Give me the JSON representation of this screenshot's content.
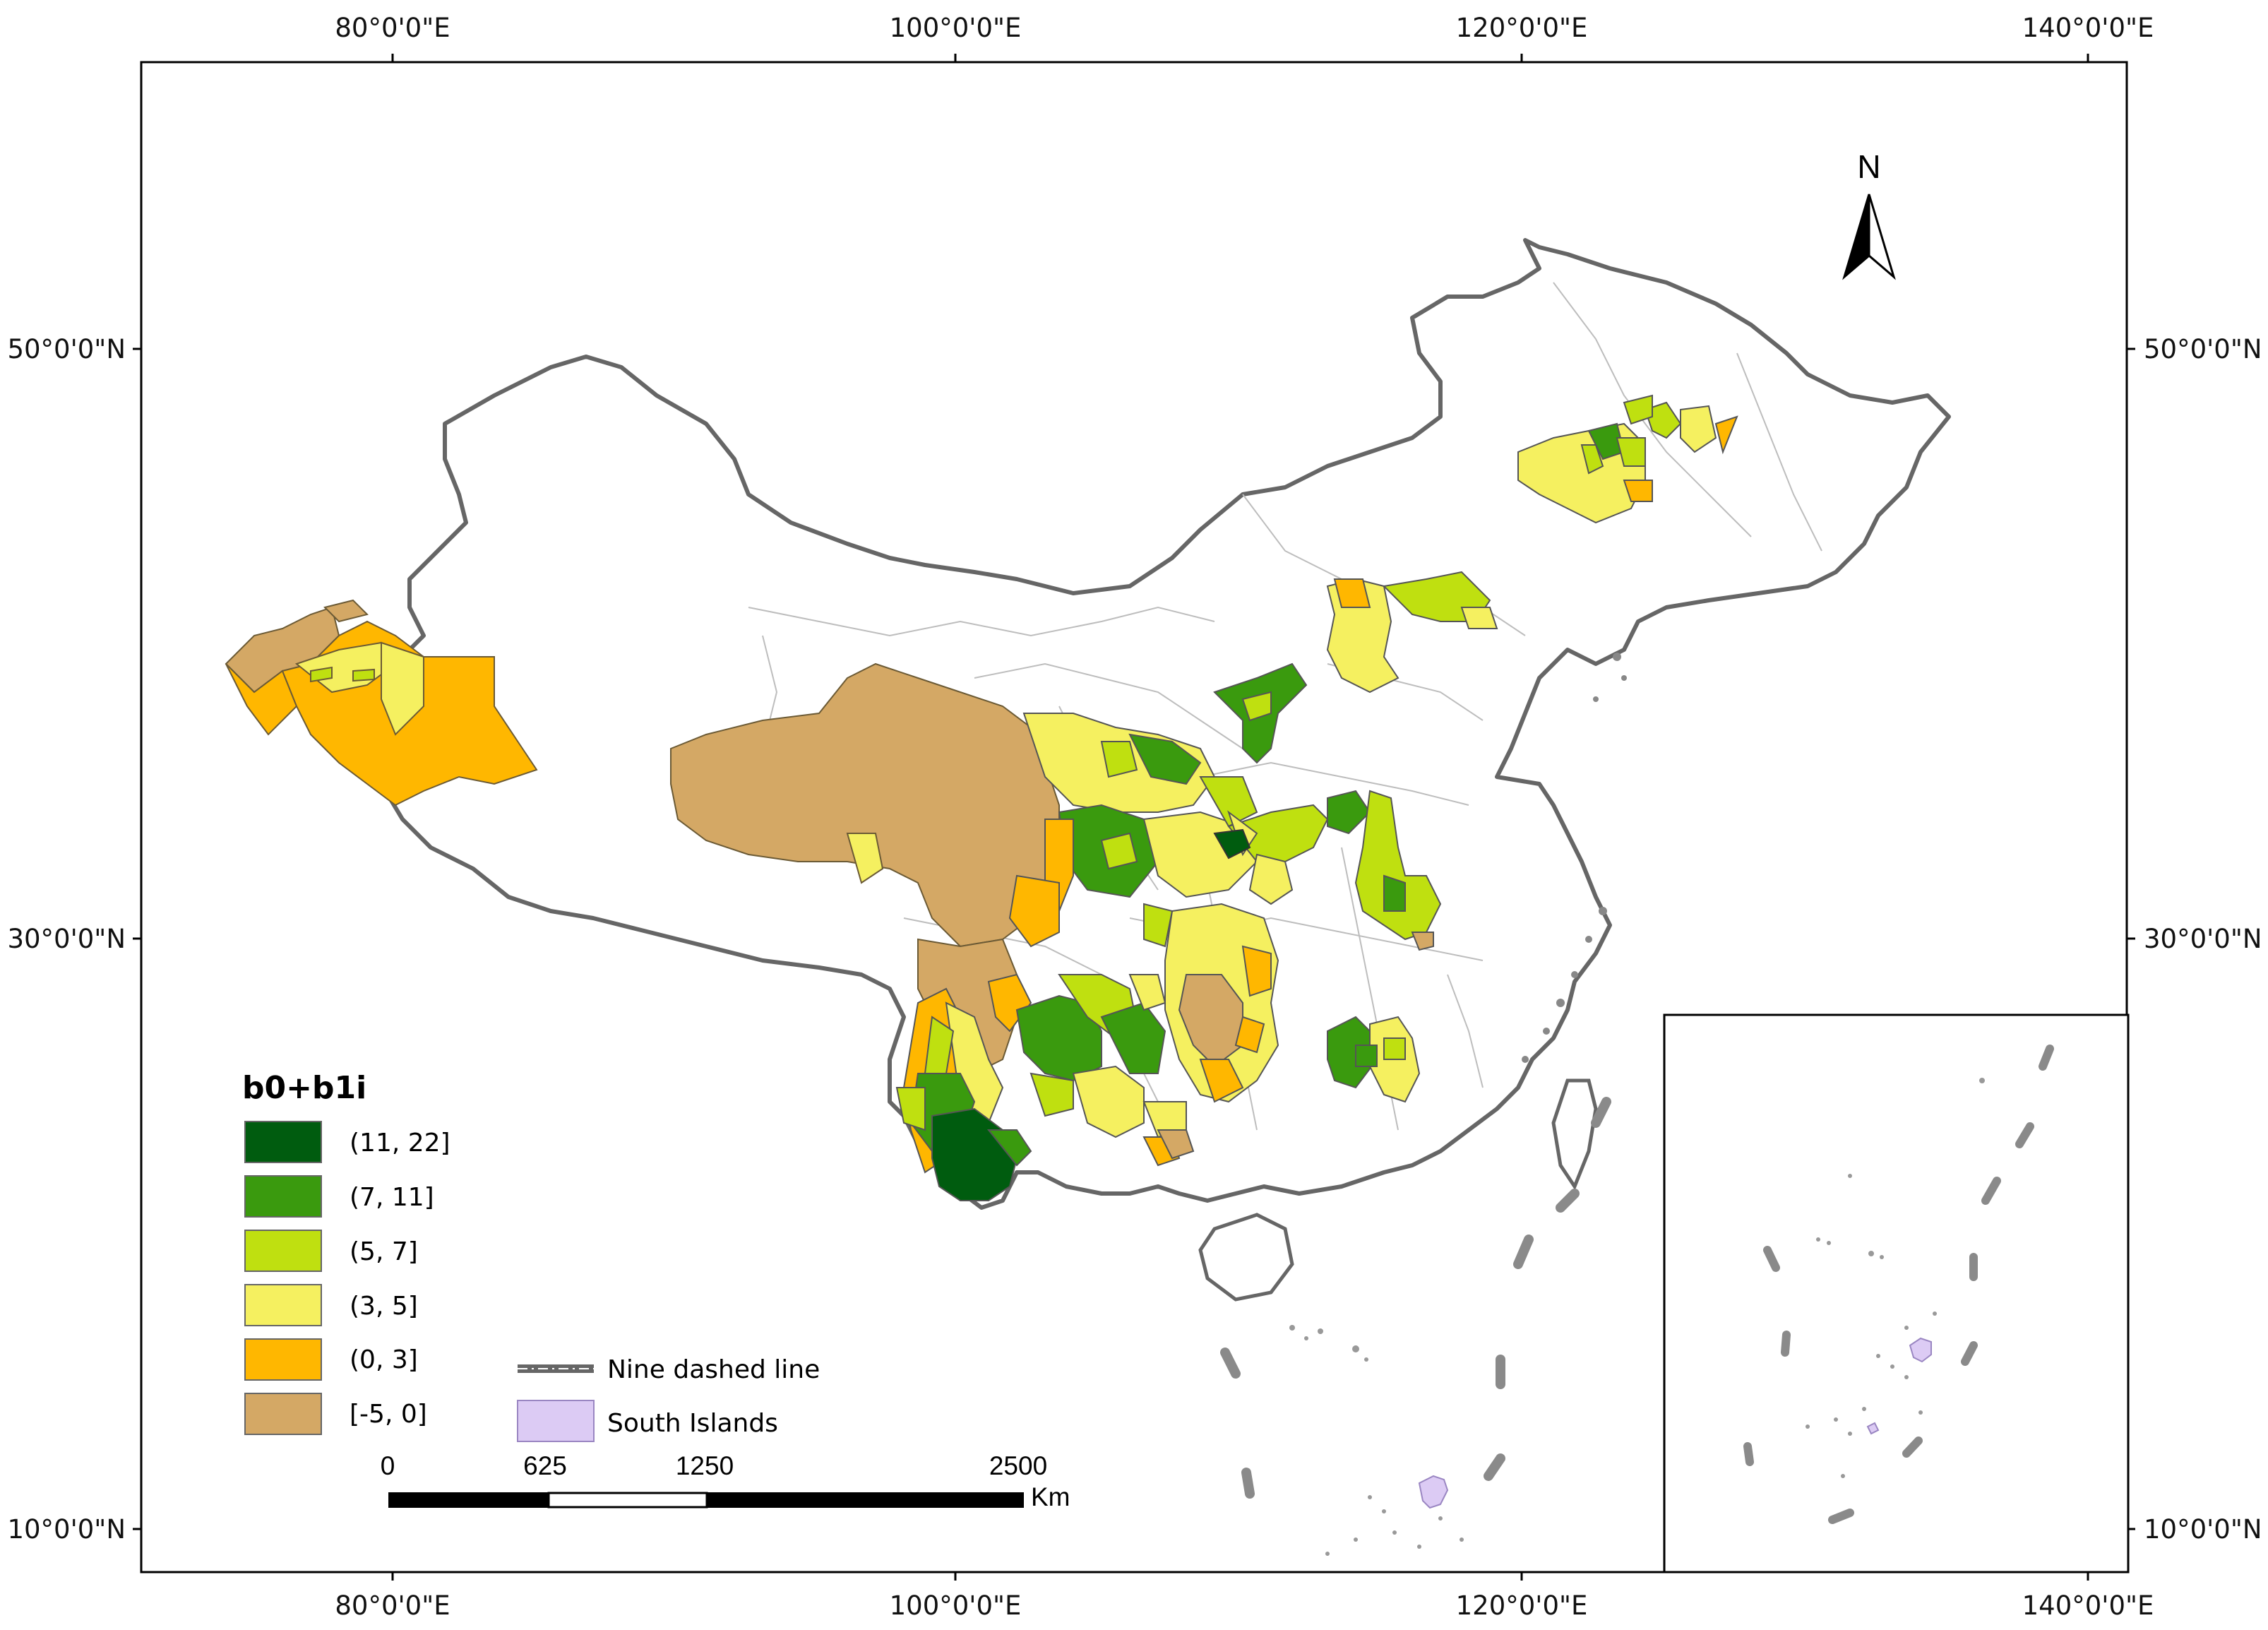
{
  "graticule": {
    "top_labels": [
      "80°0'0\"E",
      "100°0'0\"E",
      "120°0'0\"E",
      "140°0'0\"E"
    ],
    "bottom_labels": [
      "80°0'0\"E",
      "100°0'0\"E",
      "120°0'0\"E",
      "140°0'0\"E"
    ],
    "left_labels": [
      "50°0'0\"N",
      "30°0'0\"N",
      "10°0'0\"N"
    ],
    "right_labels": [
      "50°0'0\"N",
      "30°0'0\"N",
      "10°0'0\"N"
    ]
  },
  "north_arrow": {
    "label": "N"
  },
  "legend": {
    "title": "b0+b1i",
    "classes": [
      {
        "label": "(11, 22]",
        "color": "#005c0f"
      },
      {
        "label": "(7, 11]",
        "color": "#3a9a0e"
      },
      {
        "label": "(5, 7]",
        "color": "#bfe010"
      },
      {
        "label": "(3, 5]",
        "color": "#f5f060"
      },
      {
        "label": "(0, 3]",
        "color": "#ffb700"
      },
      {
        "label": "[-5, 0]",
        "color": "#d4a865"
      }
    ]
  },
  "extra_legend": {
    "nine_dash": "Nine dashed line",
    "south_islands": "South Islands",
    "south_islands_color": "#dccbf4"
  },
  "scale_bar": {
    "labels": [
      "0",
      "625",
      "1250",
      "2500"
    ],
    "unit": "Km"
  }
}
